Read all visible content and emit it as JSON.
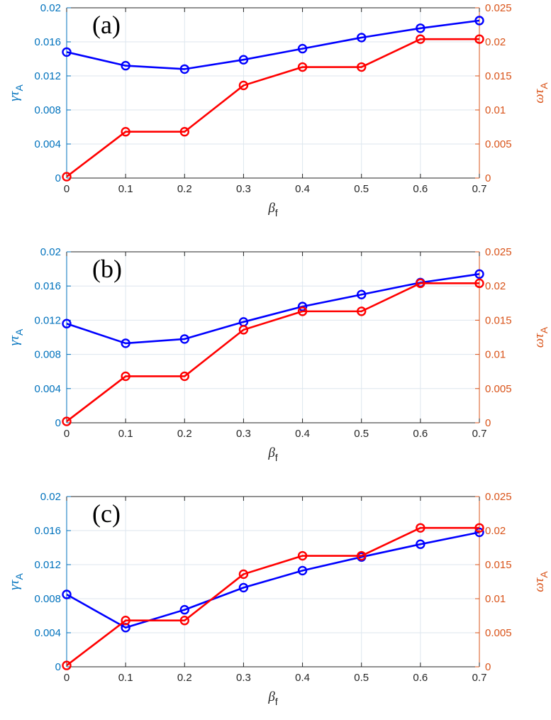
{
  "colors": {
    "left_axis": "#0072BD",
    "right_axis": "#D95319",
    "gamma_series": "#0000FF",
    "omega_series": "#FF0000",
    "grid": "#DDE6EE",
    "frame": "#262626"
  },
  "chart_data": [
    {
      "type": "line",
      "panel_label": "(a)",
      "x": [
        0,
        0.1,
        0.2,
        0.3,
        0.4,
        0.5,
        0.6,
        0.7
      ],
      "xlabel": {
        "main": "β",
        "sub": "f"
      },
      "xlim": [
        0,
        0.7
      ],
      "xticks": [
        "0",
        "0.1",
        "0.2",
        "0.3",
        "0.4",
        "0.5",
        "0.6",
        "0.7"
      ],
      "ylabel_left": {
        "main": "γτ",
        "sub": "A"
      },
      "ylim_left": [
        0,
        0.02
      ],
      "yticks_left": [
        "0",
        "0.004",
        "0.008",
        "0.012",
        "0.016",
        "0.02"
      ],
      "ylabel_right": {
        "main": "ωτ",
        "sub": "A"
      },
      "ylim_right": [
        0,
        0.025
      ],
      "yticks_right": [
        "0",
        "0.005",
        "0.01",
        "0.015",
        "0.02",
        "0.025"
      ],
      "grid": true,
      "series": [
        {
          "name": "γτ_A",
          "axis": "left",
          "marker": "circle",
          "values": [
            0.0148,
            0.0132,
            0.0128,
            0.0139,
            0.0152,
            0.0165,
            0.0176,
            0.0185
          ]
        },
        {
          "name": "ωτ_A",
          "axis": "right",
          "marker": "circle",
          "values": [
            0.0002,
            0.0068,
            0.0068,
            0.0136,
            0.0163,
            0.0163,
            0.0204,
            0.0204
          ]
        }
      ]
    },
    {
      "type": "line",
      "panel_label": "(b)",
      "x": [
        0,
        0.1,
        0.2,
        0.3,
        0.4,
        0.5,
        0.6,
        0.7
      ],
      "xlabel": {
        "main": "β",
        "sub": "f"
      },
      "xlim": [
        0,
        0.7
      ],
      "xticks": [
        "0",
        "0.1",
        "0.2",
        "0.3",
        "0.4",
        "0.5",
        "0.6",
        "0.7"
      ],
      "ylabel_left": {
        "main": "γτ",
        "sub": "A"
      },
      "ylim_left": [
        0,
        0.02
      ],
      "yticks_left": [
        "0",
        "0.004",
        "0.008",
        "0.012",
        "0.016",
        "0.02"
      ],
      "ylabel_right": {
        "main": "ωτ",
        "sub": "A"
      },
      "ylim_right": [
        0,
        0.025
      ],
      "yticks_right": [
        "0",
        "0.005",
        "0.01",
        "0.015",
        "0.02",
        "0.025"
      ],
      "grid": true,
      "series": [
        {
          "name": "γτ_A",
          "axis": "left",
          "marker": "circle",
          "values": [
            0.0116,
            0.0093,
            0.0098,
            0.0118,
            0.0136,
            0.015,
            0.0164,
            0.0174
          ]
        },
        {
          "name": "ωτ_A",
          "axis": "right",
          "marker": "circle",
          "values": [
            0.0002,
            0.0068,
            0.0068,
            0.0136,
            0.0163,
            0.0163,
            0.0204,
            0.0204
          ]
        }
      ]
    },
    {
      "type": "line",
      "panel_label": "(c)",
      "x": [
        0,
        0.1,
        0.2,
        0.3,
        0.4,
        0.5,
        0.6,
        0.7
      ],
      "xlabel": {
        "main": "β",
        "sub": "f"
      },
      "xlim": [
        0,
        0.7
      ],
      "xticks": [
        "0",
        "0.1",
        "0.2",
        "0.3",
        "0.4",
        "0.5",
        "0.6",
        "0.7"
      ],
      "ylabel_left": {
        "main": "γτ",
        "sub": "A"
      },
      "ylim_left": [
        0,
        0.02
      ],
      "yticks_left": [
        "0",
        "0.004",
        "0.008",
        "0.012",
        "0.016",
        "0.02"
      ],
      "ylabel_right": {
        "main": "ωτ",
        "sub": "A"
      },
      "ylim_right": [
        0,
        0.025
      ],
      "yticks_right": [
        "0",
        "0.005",
        "0.01",
        "0.015",
        "0.02",
        "0.025"
      ],
      "grid": true,
      "series": [
        {
          "name": "γτ_A",
          "axis": "left",
          "marker": "circle",
          "values": [
            0.0085,
            0.0046,
            0.0067,
            0.0093,
            0.0113,
            0.0129,
            0.0144,
            0.0158
          ]
        },
        {
          "name": "ωτ_A",
          "axis": "right",
          "marker": "circle",
          "values": [
            0.0002,
            0.0068,
            0.0068,
            0.0136,
            0.0163,
            0.0163,
            0.0204,
            0.0204
          ]
        }
      ]
    }
  ]
}
